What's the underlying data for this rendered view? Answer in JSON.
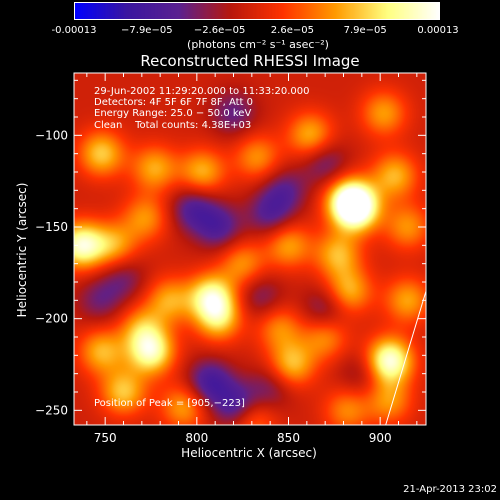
{
  "colorbar": {
    "tick_labels": [
      "-0.00013",
      "−7.9e−05",
      "−2.6e−05",
      "2.6e−05",
      "7.9e−05",
      "0.00013"
    ],
    "units": "(photons cm⁻² s⁻¹ asec⁻²)",
    "range": [
      -0.00013,
      0.00013
    ],
    "colormap": [
      "#0000ff",
      "#3a16a0",
      "#5a2090",
      "#b8180c",
      "#ff3300",
      "#ff9a00",
      "#ffff80",
      "#ffffff"
    ]
  },
  "chart_data": {
    "type": "heatmap",
    "title": "Reconstructed RHESSI Image",
    "xlabel": "Heliocentric X (arcsec)",
    "ylabel": "Heliocentric Y (arcsec)",
    "xlim": [
      733,
      925
    ],
    "ylim": [
      -258,
      -66
    ],
    "xticks": [
      750,
      800,
      850,
      900
    ],
    "yticks": [
      -100,
      -150,
      -200,
      -250
    ],
    "xtick_labels": [
      "750",
      "800",
      "850",
      "900"
    ],
    "ytick_labels": [
      "−100",
      "−150",
      "−200",
      "−250"
    ],
    "info_lines": [
      "29-Jun-2002 11:29:20.000 to 11:33:20.000",
      "Detectors: 4F 5F 6F 7F 8F, Att 0",
      "Energy Range: 25.0 − 50.0 keV",
      "Clean    Total counts: 4.38E+03"
    ],
    "peak_label": "Position of Peak = [905,−223]",
    "peak_position": [
      905,
      -223
    ],
    "blobs": [
      {
        "x": 748,
        "y": -110,
        "v": 0.62
      },
      {
        "x": 777,
        "y": -118,
        "v": 0.52
      },
      {
        "x": 803,
        "y": -120,
        "v": 0.55
      },
      {
        "x": 833,
        "y": -112,
        "v": 0.45
      },
      {
        "x": 862,
        "y": -100,
        "v": 0.55
      },
      {
        "x": 902,
        "y": -88,
        "v": 0.48
      },
      {
        "x": 908,
        "y": -122,
        "v": 0.55
      },
      {
        "x": 772,
        "y": -145,
        "v": 0.45
      },
      {
        "x": 755,
        "y": -160,
        "v": 0.5
      },
      {
        "x": 737,
        "y": -160,
        "v": 0.92
      },
      {
        "x": 825,
        "y": -170,
        "v": 0.45
      },
      {
        "x": 850,
        "y": -160,
        "v": 0.5
      },
      {
        "x": 883,
        "y": -135,
        "v": 0.72
      },
      {
        "x": 887,
        "y": -140,
        "v": 0.98
      },
      {
        "x": 915,
        "y": -150,
        "v": 0.45
      },
      {
        "x": 877,
        "y": -165,
        "v": 0.55
      },
      {
        "x": 785,
        "y": -190,
        "v": 0.5
      },
      {
        "x": 808,
        "y": -188,
        "v": 0.8
      },
      {
        "x": 812,
        "y": -200,
        "v": 0.6
      },
      {
        "x": 770,
        "y": -205,
        "v": 0.45
      },
      {
        "x": 775,
        "y": -218,
        "v": 0.85
      },
      {
        "x": 748,
        "y": -218,
        "v": 0.55
      },
      {
        "x": 845,
        "y": -205,
        "v": 0.42
      },
      {
        "x": 852,
        "y": -225,
        "v": 0.58
      },
      {
        "x": 870,
        "y": -210,
        "v": 0.45
      },
      {
        "x": 883,
        "y": -185,
        "v": 0.55
      },
      {
        "x": 905,
        "y": -223,
        "v": 1.0
      },
      {
        "x": 915,
        "y": -190,
        "v": 0.5
      },
      {
        "x": 905,
        "y": -245,
        "v": 0.45
      },
      {
        "x": 760,
        "y": -240,
        "v": 0.6
      },
      {
        "x": 793,
        "y": -248,
        "v": 0.5
      },
      {
        "x": 830,
        "y": -255,
        "v": 0.45
      },
      {
        "x": 882,
        "y": -250,
        "v": 0.42
      },
      {
        "x": 807,
        "y": -235,
        "v": -0.55
      },
      {
        "x": 822,
        "y": -248,
        "v": -0.55
      },
      {
        "x": 798,
        "y": -140,
        "v": -0.45
      },
      {
        "x": 812,
        "y": -150,
        "v": -0.45
      },
      {
        "x": 840,
        "y": -143,
        "v": -0.4
      },
      {
        "x": 820,
        "y": -88,
        "v": -0.35
      },
      {
        "x": 848,
        "y": -130,
        "v": -0.35
      },
      {
        "x": 870,
        "y": -115,
        "v": -0.35
      },
      {
        "x": 760,
        "y": -178,
        "v": -0.3
      },
      {
        "x": 835,
        "y": -188,
        "v": -0.3
      },
      {
        "x": 870,
        "y": -195,
        "v": -0.35
      },
      {
        "x": 890,
        "y": -230,
        "v": -0.25
      },
      {
        "x": 747,
        "y": -190,
        "v": -0.3
      },
      {
        "x": 840,
        "y": -238,
        "v": -0.3
      }
    ]
  },
  "timestamp": "21-Apr-2013 23:02"
}
